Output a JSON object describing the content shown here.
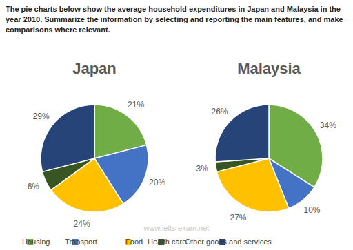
{
  "header": "The pie charts below show the average household expenditures in Japan and Malaysia in the year 2010. Summarize the information by selecting and reporting the main features, and make comparisons where relevant.",
  "caption": "www.ielts-exam.net",
  "chart_data": [
    {
      "type": "pie",
      "title": "Japan",
      "categories": [
        "Housing",
        "Transport",
        "Food",
        "Health care",
        "Other goods and services"
      ],
      "values": [
        21,
        20,
        24,
        6,
        29
      ],
      "value_labels": [
        "21%",
        "20%",
        "24%",
        "6%",
        "29%"
      ],
      "colors": [
        "#70ad47",
        "#4472c4",
        "#ffc000",
        "#375623",
        "#264478"
      ],
      "data_labels": true,
      "legend": "bottom"
    },
    {
      "type": "pie",
      "title": "Malaysia",
      "categories": [
        "Housing",
        "Transport",
        "Food",
        "Health care",
        "Other goods and services"
      ],
      "values": [
        34,
        10,
        27,
        3,
        26
      ],
      "value_labels": [
        "34%",
        "10%",
        "27%",
        "3%",
        "26%"
      ],
      "colors": [
        "#70ad47",
        "#4472c4",
        "#ffc000",
        "#375623",
        "#264478"
      ],
      "data_labels": true,
      "legend": "bottom"
    }
  ]
}
